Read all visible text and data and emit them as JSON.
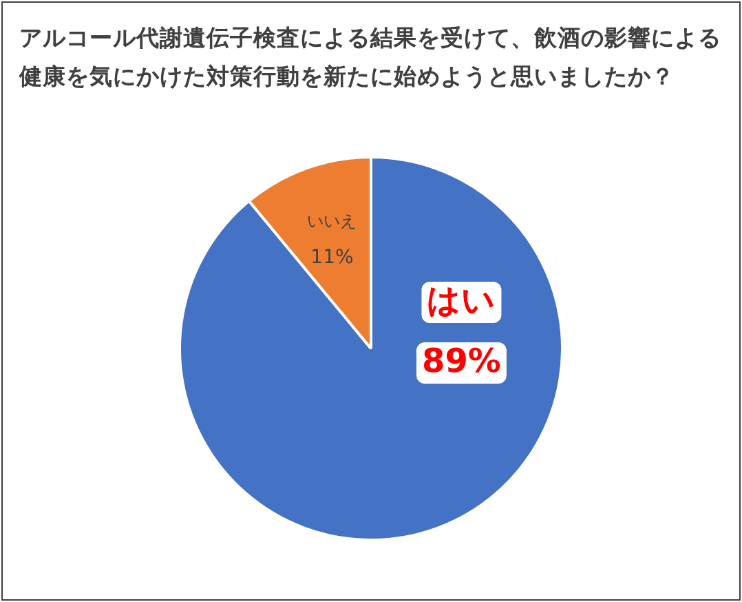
{
  "chart_data": {
    "type": "pie",
    "title": "アルコール代謝遺伝子検査による結果を受けて、飲酒の影響による健康を気にかけた対策行動を新たに始めようと思いましたか？",
    "categories": [
      "はい",
      "いいえ"
    ],
    "values": [
      89,
      11
    ],
    "value_labels": [
      "89%",
      "11%"
    ],
    "colors": [
      "#4472c4",
      "#ed7d31"
    ],
    "legend": false
  }
}
